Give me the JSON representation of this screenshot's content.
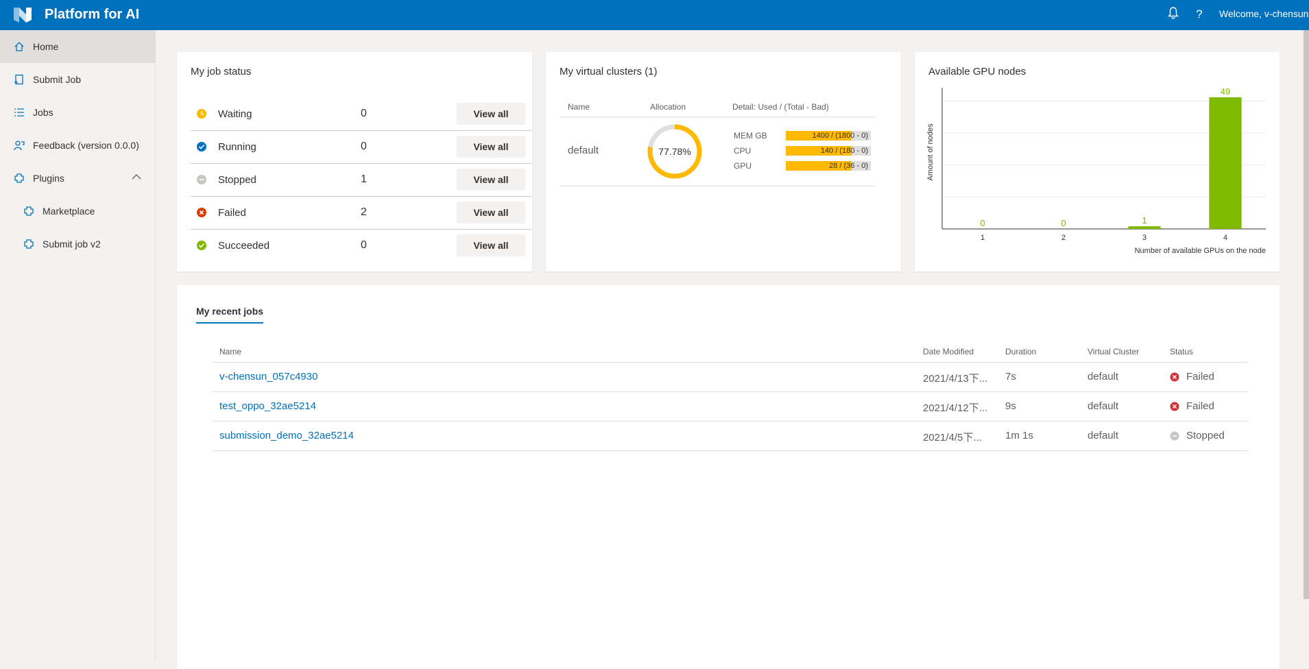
{
  "header": {
    "app_title": "Platform for AI",
    "welcome": "Welcome, v-chensun",
    "notification_icon": "bell-icon",
    "help_glyph": "?"
  },
  "sidebar": {
    "items": [
      {
        "label": "Home",
        "icon": "home-icon",
        "active": true
      },
      {
        "label": "Submit Job",
        "icon": "submit-job-icon"
      },
      {
        "label": "Jobs",
        "icon": "jobs-list-icon"
      },
      {
        "label": "Feedback (version 0.0.0)",
        "icon": "feedback-icon"
      },
      {
        "label": "Plugins",
        "icon": "plugin-icon",
        "expanded": true
      },
      {
        "label": "Marketplace",
        "icon": "plugin-icon"
      },
      {
        "label": "Submit job v2",
        "icon": "plugin-icon"
      }
    ]
  },
  "job_status": {
    "title": "My job status",
    "button_label": "View all",
    "rows": [
      {
        "label": "Waiting",
        "count": "0",
        "color": "#ffb900"
      },
      {
        "label": "Running",
        "count": "0",
        "color": "#0071bc"
      },
      {
        "label": "Stopped",
        "count": "1",
        "color": "#c8c6c4"
      },
      {
        "label": "Failed",
        "count": "2",
        "color": "#d83b01"
      },
      {
        "label": "Succeeded",
        "count": "0",
        "color": "#7fba00"
      }
    ]
  },
  "virtual_clusters": {
    "title": "My virtual clusters (1)",
    "headers": {
      "name": "Name",
      "allocation": "Allocation",
      "detail": "Detail: Used / (Total - Bad)"
    },
    "row": {
      "name": "default",
      "allocation_pct": 77.78,
      "allocation_label": "77.78%",
      "resources": [
        {
          "label": "MEM GB",
          "text": "1400 / (1800 - 0)",
          "fraction": 0.7778
        },
        {
          "label": "CPU",
          "text": "140 / (180 - 0)",
          "fraction": 0.7778
        },
        {
          "label": "GPU",
          "text": "28 / (36 - 0)",
          "fraction": 0.7778
        }
      ]
    },
    "accent": "#ffb900"
  },
  "gpu_nodes": {
    "title": "Available GPU nodes",
    "chart_data": {
      "type": "bar",
      "categories": [
        "1",
        "2",
        "3",
        "4"
      ],
      "values": [
        0,
        0,
        1,
        49
      ],
      "data_labels": [
        "0",
        "0",
        "1",
        "49"
      ],
      "xlabel": "Number of available GPUs on the node",
      "ylabel": "Amount of nodes",
      "ylim": [
        0,
        50
      ],
      "bar_color": "#7fba00",
      "grid": true
    }
  },
  "recent_jobs": {
    "tab_label": "My recent jobs",
    "columns": {
      "name": "Name",
      "modified": "Date Modified",
      "duration": "Duration",
      "vc": "Virtual Cluster",
      "status": "Status"
    },
    "rows": [
      {
        "name": "v-chensun_057c4930",
        "modified": "2021/4/13下...",
        "duration": "7s",
        "vc": "default",
        "status": "Failed",
        "status_icon": "failed-icon"
      },
      {
        "name": "test_oppo_32ae5214",
        "modified": "2021/4/12下...",
        "duration": "9s",
        "vc": "default",
        "status": "Failed",
        "status_icon": "failed-icon"
      },
      {
        "name": "submission_demo_32ae5214",
        "modified": "2021/4/5下...",
        "duration": "1m 1s",
        "vc": "default",
        "status": "Stopped",
        "status_icon": "stopped-icon"
      }
    ]
  }
}
